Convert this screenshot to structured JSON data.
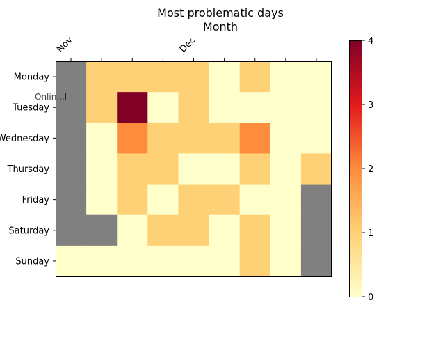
{
  "chart_data": {
    "type": "heatmap",
    "title": "Most problematic days",
    "subtitle": "Month",
    "y_categories": [
      "Monday",
      "Tuesday",
      "Wednesday",
      "Thursday",
      "Friday",
      "Saturday",
      "Sunday"
    ],
    "x_tick_labels": [
      "Nov",
      "",
      "",
      "",
      "Dec",
      "",
      "",
      "",
      ""
    ],
    "top_ticks_only": true,
    "missing_color": "#808080",
    "colormap": "YlOrRd",
    "colorbar": {
      "min": 0,
      "max": 4,
      "ticks": [
        "0",
        "1",
        "2",
        "3",
        "4"
      ]
    },
    "values": [
      [
        null,
        1,
        1,
        1,
        1,
        0,
        1,
        0,
        0
      ],
      [
        null,
        1,
        4,
        0,
        1,
        0,
        0,
        0,
        0
      ],
      [
        null,
        0,
        2,
        1,
        1,
        1,
        2,
        0,
        0
      ],
      [
        null,
        0,
        1,
        1,
        0,
        0,
        1,
        0,
        1
      ],
      [
        null,
        0,
        1,
        0,
        1,
        1,
        0,
        0,
        null
      ],
      [
        null,
        null,
        0,
        1,
        1,
        0,
        1,
        0,
        null
      ],
      [
        0,
        0,
        0,
        0,
        0,
        0,
        1,
        0,
        null
      ]
    ],
    "watermark_text": "Onlin...l"
  }
}
